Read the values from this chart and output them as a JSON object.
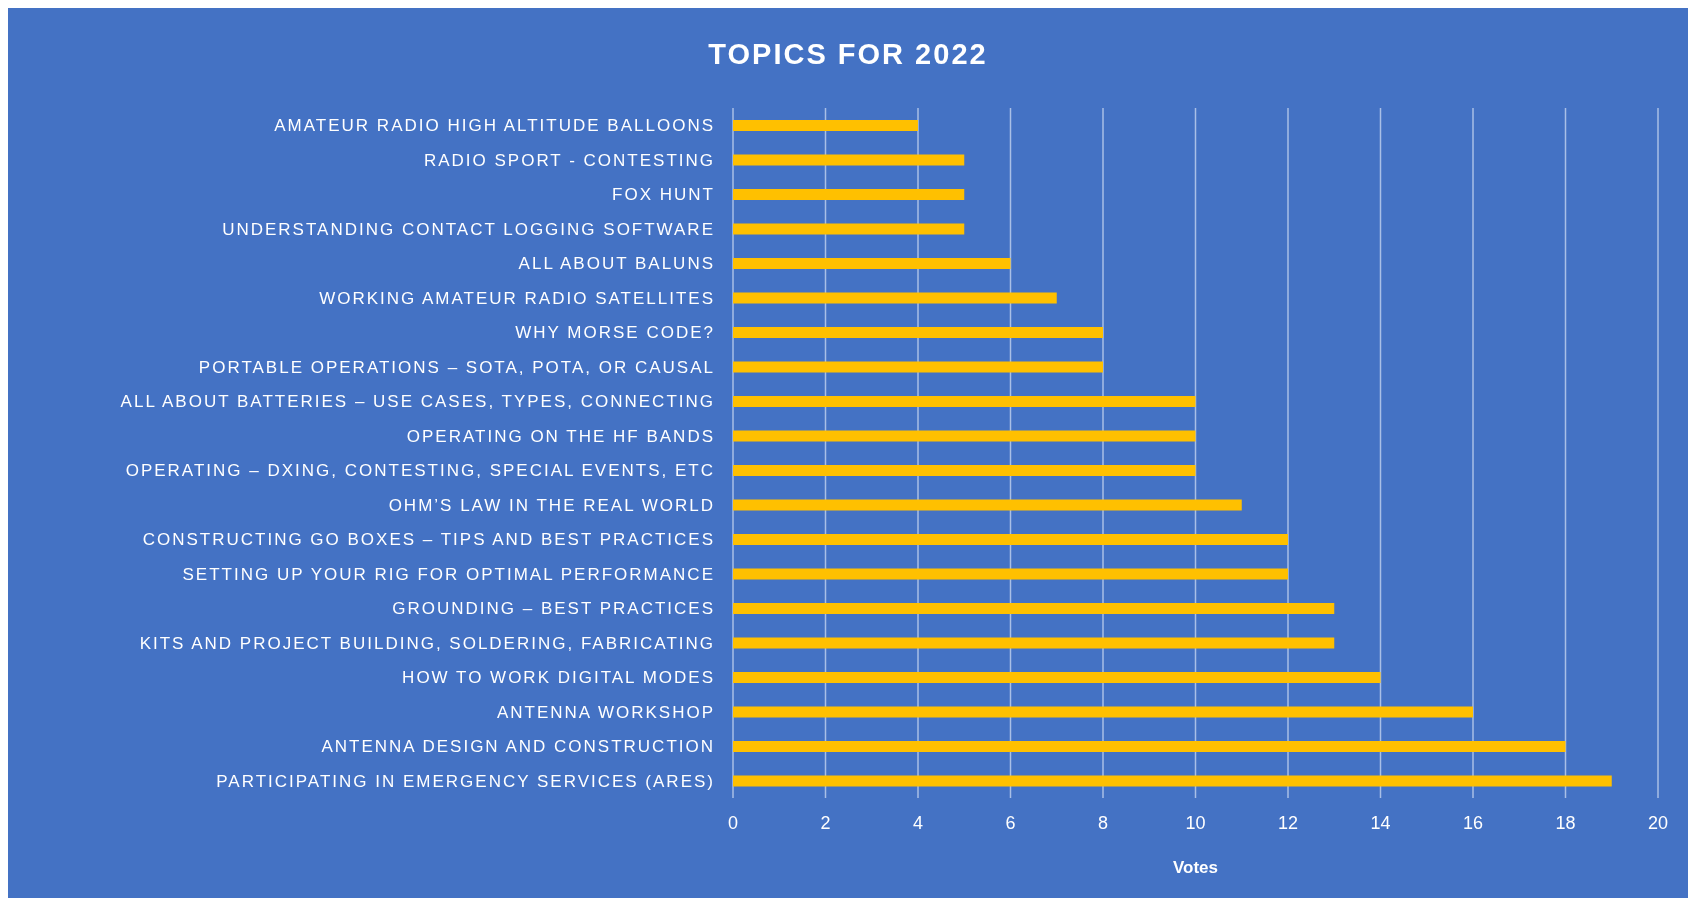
{
  "chart_data": {
    "type": "bar",
    "orientation": "horizontal",
    "title": "TOPICS FOR 2022",
    "xlabel": "Votes",
    "categories": [
      "AMATEUR RADIO HIGH ALTITUDE BALLOONS",
      "RADIO SPORT - CONTESTING",
      "FOX HUNT",
      "UNDERSTANDING CONTACT LOGGING SOFTWARE",
      "ALL ABOUT BALUNS",
      "WORKING AMATEUR RADIO SATELLITES",
      "WHY MORSE CODE?",
      "PORTABLE OPERATIONS – SOTA, POTA, OR CAUSAL",
      "ALL ABOUT BATTERIES – USE CASES, TYPES, CONNECTING",
      "OPERATING ON THE HF BANDS",
      "OPERATING – DXING, CONTESTING, SPECIAL EVENTS, ETC",
      "OHM’S LAW IN THE REAL WORLD",
      "CONSTRUCTING GO BOXES – TIPS AND BEST PRACTICES",
      "SETTING UP YOUR RIG FOR OPTIMAL PERFORMANCE",
      "GROUNDING – BEST PRACTICES",
      "KITS AND PROJECT BUILDING, SOLDERING, FABRICATING",
      "HOW TO WORK DIGITAL MODES",
      "ANTENNA WORKSHOP",
      "ANTENNA DESIGN AND CONSTRUCTION",
      "PARTICIPATING IN EMERGENCY SERVICES (ARES)"
    ],
    "values": [
      4,
      5,
      5,
      5,
      6,
      7,
      8,
      8,
      10,
      10,
      10,
      11,
      12,
      12,
      13,
      13,
      14,
      16,
      18,
      19
    ],
    "color": "#ffc000",
    "xlim": [
      0,
      20
    ],
    "xticks": [
      0,
      2,
      4,
      6,
      8,
      10,
      12,
      14,
      16,
      18,
      20
    ],
    "grid": "x"
  }
}
